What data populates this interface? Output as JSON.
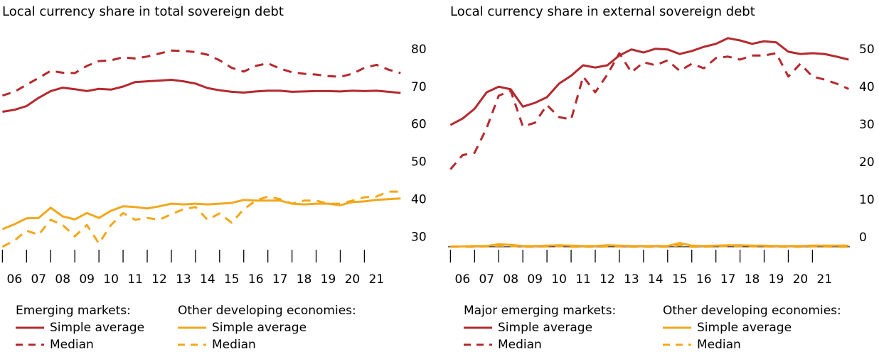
{
  "chart_data": [
    {
      "type": "line",
      "title": "Local currency share in total sovereign debt",
      "x": [
        2006,
        2006.5,
        2007,
        2007.5,
        2008,
        2008.5,
        2009,
        2009.5,
        2010,
        2010.5,
        2011,
        2011.5,
        2012,
        2012.5,
        2013,
        2013.5,
        2014,
        2014.5,
        2015,
        2015.5,
        2016,
        2016.5,
        2017,
        2017.5,
        2018,
        2018.5,
        2019,
        2019.5,
        2020,
        2020.5,
        2021,
        2021.5,
        2022,
        2022.5
      ],
      "xlim": [
        2005.9,
        2022.55
      ],
      "xticks": [
        {
          "value": 2006.5,
          "label": "06"
        },
        {
          "value": 2007.5,
          "label": "07"
        },
        {
          "value": 2008.5,
          "label": "08"
        },
        {
          "value": 2009.5,
          "label": "09"
        },
        {
          "value": 2010.5,
          "label": "10"
        },
        {
          "value": 2011.5,
          "label": "11"
        },
        {
          "value": 2012.5,
          "label": "12"
        },
        {
          "value": 2013.5,
          "label": "13"
        },
        {
          "value": 2014.5,
          "label": "14"
        },
        {
          "value": 2015.5,
          "label": "15"
        },
        {
          "value": 2016.5,
          "label": "16"
        },
        {
          "value": 2017.5,
          "label": "17"
        },
        {
          "value": 2018.5,
          "label": "18"
        },
        {
          "value": 2019.5,
          "label": "19"
        },
        {
          "value": 2020.5,
          "label": "20"
        },
        {
          "value": 2021.5,
          "label": "21"
        }
      ],
      "ylim": [
        29.5,
        90
      ],
      "yticks": [
        30,
        40,
        50,
        60,
        70,
        80
      ],
      "series": [
        {
          "group": "Emerging markets:",
          "name": "Simple average",
          "color": "#b5292e",
          "dashed": false,
          "values": [
            65.9,
            66.4,
            67.4,
            69.6,
            71.4,
            72.3,
            71.9,
            71.4,
            72.0,
            71.8,
            72.6,
            73.8,
            74.0,
            74.2,
            74.4,
            74.0,
            73.4,
            72.2,
            71.6,
            71.2,
            71.0,
            71.3,
            71.5,
            71.5,
            71.2,
            71.3,
            71.4,
            71.4,
            71.3,
            71.5,
            71.4,
            71.5,
            71.2,
            70.9
          ]
        },
        {
          "group": "Emerging markets:",
          "name": "Median",
          "color": "#b5292e",
          "dashed": true,
          "values": [
            70.2,
            71.2,
            73.1,
            74.9,
            76.8,
            76.3,
            76.2,
            78.1,
            79.4,
            79.6,
            80.4,
            80.1,
            80.6,
            81.4,
            82.2,
            82.1,
            81.8,
            81.1,
            79.6,
            77.6,
            76.6,
            78.1,
            78.8,
            77.4,
            76.4,
            76.0,
            75.8,
            75.4,
            75.2,
            76.0,
            77.6,
            78.4,
            77.1,
            76.2
          ]
        },
        {
          "group": "Other developing economies:",
          "name": "Simple average",
          "color": "#f2a81d",
          "dashed": false,
          "values": [
            34.6,
            35.9,
            37.5,
            37.6,
            40.3,
            38.0,
            37.2,
            38.9,
            37.6,
            39.5,
            40.7,
            40.5,
            40.1,
            40.7,
            41.4,
            41.2,
            41.4,
            41.2,
            41.4,
            41.6,
            42.4,
            42.2,
            42.2,
            42.2,
            41.4,
            41.2,
            41.4,
            41.4,
            41.0,
            41.8,
            42.0,
            42.4,
            42.6,
            42.8
          ]
        },
        {
          "group": "Other developing economies:",
          "name": "Median",
          "color": "#f2a81d",
          "dashed": true,
          "values": [
            29.9,
            31.6,
            34.2,
            33.1,
            37.1,
            35.7,
            32.7,
            35.7,
            30.8,
            35.7,
            38.9,
            37.1,
            37.6,
            37.1,
            38.6,
            39.9,
            40.5,
            37.1,
            38.8,
            36.3,
            39.9,
            42.2,
            43.3,
            42.6,
            41.4,
            42.2,
            42.2,
            41.4,
            41.4,
            42.2,
            43.1,
            43.3,
            44.6,
            44.6
          ]
        }
      ]
    },
    {
      "type": "line",
      "title": "Local currency share in external sovereign debt",
      "x": [
        2006,
        2006.5,
        2007,
        2007.5,
        2008,
        2008.5,
        2009,
        2009.5,
        2010,
        2010.5,
        2011,
        2011.5,
        2012,
        2012.5,
        2013,
        2013.5,
        2014,
        2014.5,
        2015,
        2015.5,
        2016,
        2016.5,
        2017,
        2017.5,
        2018,
        2018.5,
        2019,
        2019.5,
        2020,
        2020.5,
        2021,
        2021.5,
        2022,
        2022.5
      ],
      "xlim": [
        2005.9,
        2022.55
      ],
      "xticks": [
        {
          "value": 2006.5,
          "label": "06"
        },
        {
          "value": 2007.5,
          "label": "07"
        },
        {
          "value": 2008.5,
          "label": "08"
        },
        {
          "value": 2009.5,
          "label": "09"
        },
        {
          "value": 2010.5,
          "label": "10"
        },
        {
          "value": 2011.5,
          "label": "11"
        },
        {
          "value": 2012.5,
          "label": "12"
        },
        {
          "value": 2013.5,
          "label": "13"
        },
        {
          "value": 2014.5,
          "label": "14"
        },
        {
          "value": 2015.5,
          "label": "15"
        },
        {
          "value": 2016.5,
          "label": "16"
        },
        {
          "value": 2017.5,
          "label": "17"
        },
        {
          "value": 2018.5,
          "label": "18"
        },
        {
          "value": 2019.5,
          "label": "19"
        },
        {
          "value": 2020.5,
          "label": "20"
        },
        {
          "value": 2021.5,
          "label": "21"
        }
      ],
      "ylim": [
        -0.4,
        60
      ],
      "yticks": [
        0,
        10,
        20,
        30,
        40,
        50
      ],
      "series": [
        {
          "group": "Major emerging markets:",
          "name": "Simple average",
          "color": "#b5292e",
          "dashed": false,
          "values": [
            32.4,
            34.1,
            36.7,
            41.1,
            42.6,
            41.9,
            37.3,
            38.3,
            39.8,
            43.4,
            45.5,
            48.3,
            47.7,
            48.3,
            50.9,
            52.5,
            51.7,
            52.7,
            52.5,
            51.3,
            52.1,
            53.2,
            54.0,
            55.5,
            54.9,
            54.0,
            54.7,
            54.4,
            51.9,
            51.3,
            51.5,
            51.3,
            50.6,
            49.8
          ]
        },
        {
          "group": "Major emerging markets:",
          "name": "Median",
          "color": "#b5292e",
          "dashed": true,
          "values": [
            20.6,
            24.4,
            25.0,
            31.6,
            40.2,
            41.5,
            32.0,
            33.0,
            37.7,
            34.5,
            33.9,
            45.3,
            41.1,
            45.8,
            51.5,
            46.4,
            49.1,
            48.3,
            49.6,
            46.8,
            48.7,
            47.5,
            50.2,
            50.6,
            49.8,
            50.9,
            50.9,
            51.5,
            45.3,
            48.7,
            45.3,
            44.5,
            43.4,
            42.0
          ]
        },
        {
          "group": "Other developing economies:",
          "name": "Simple average",
          "color": "#f2a81d",
          "dashed": false,
          "values": [
            0.1,
            0.1,
            0.2,
            0.2,
            0.7,
            0.5,
            0.2,
            0.2,
            0.3,
            0.4,
            0.3,
            0.2,
            0.2,
            0.4,
            0.3,
            0.2,
            0.2,
            0.2,
            0.2,
            1.0,
            0.3,
            0.2,
            0.3,
            0.4,
            0.4,
            0.3,
            0.3,
            0.2,
            0.2,
            0.2,
            0.3,
            0.3,
            0.3,
            0.3
          ]
        },
        {
          "group": "Other developing economies:",
          "name": "Median",
          "color": "#f2a81d",
          "dashed": true,
          "values": [
            0.0,
            0.0,
            0.0,
            0.1,
            0.3,
            0.2,
            0.0,
            0.0,
            0.1,
            0.2,
            0.0,
            0.0,
            0.0,
            0.1,
            0.1,
            0.0,
            0.0,
            0.0,
            0.0,
            0.4,
            0.0,
            0.0,
            0.1,
            0.2,
            0.2,
            0.1,
            0.1,
            0.0,
            0.0,
            0.0,
            0.1,
            0.1,
            0.0,
            0.0
          ]
        }
      ]
    }
  ]
}
